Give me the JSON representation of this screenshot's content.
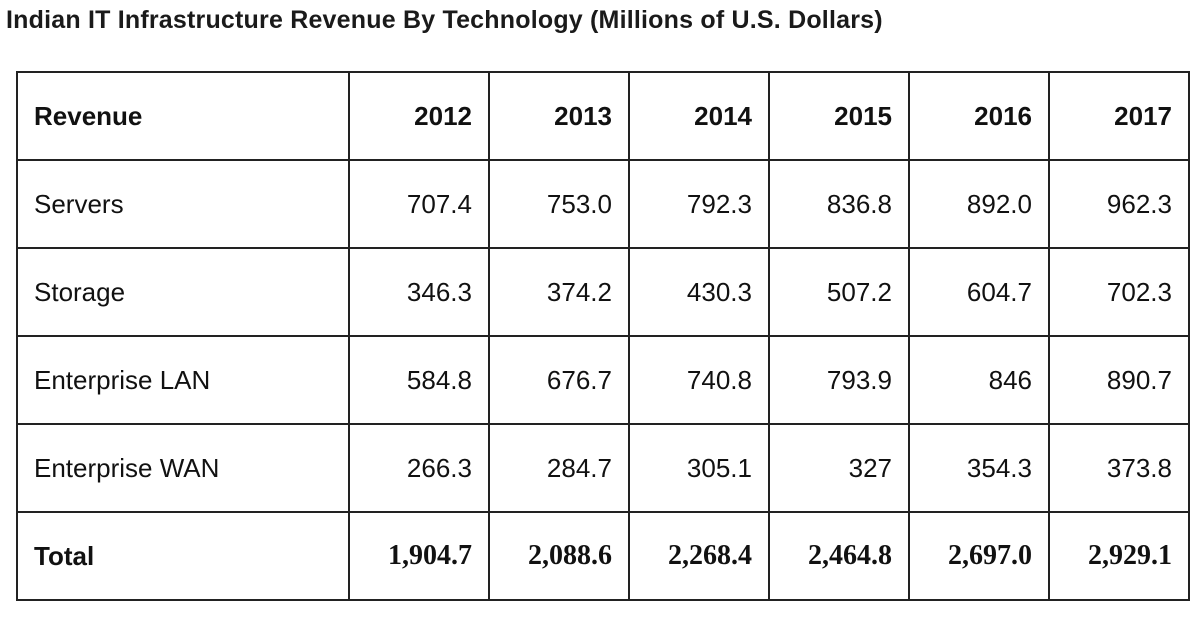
{
  "title": "Indian IT Infrastructure Revenue By Technology (Millions of U.S. Dollars)",
  "table": {
    "header_label": "Revenue",
    "years": [
      "2012",
      "2013",
      "2014",
      "2015",
      "2016",
      "2017"
    ],
    "rows": [
      {
        "label": "Servers",
        "values": [
          "707.4",
          "753.0",
          "792.3",
          "836.8",
          "892.0",
          "962.3"
        ]
      },
      {
        "label": "Storage",
        "values": [
          "346.3",
          "374.2",
          "430.3",
          "507.2",
          "604.7",
          "702.3"
        ]
      },
      {
        "label": "Enterprise LAN",
        "values": [
          "584.8",
          "676.7",
          "740.8",
          "793.9",
          "846",
          "890.7"
        ]
      },
      {
        "label": "Enterprise WAN",
        "values": [
          "266.3",
          "284.7",
          "305.1",
          "327",
          "354.3",
          "373.8"
        ]
      }
    ],
    "total": {
      "label": "Total",
      "values": [
        "1,904.7",
        "2,088.6",
        "2,268.4",
        "2,464.8",
        "2,697.0",
        "2,929.1"
      ]
    }
  },
  "chart_data": {
    "type": "table",
    "title": "Indian IT Infrastructure Revenue By Technology (Millions of U.S. Dollars)",
    "columns": [
      "Revenue",
      "2012",
      "2013",
      "2014",
      "2015",
      "2016",
      "2017"
    ],
    "rows": [
      [
        "Servers",
        707.4,
        753.0,
        792.3,
        836.8,
        892.0,
        962.3
      ],
      [
        "Storage",
        346.3,
        374.2,
        430.3,
        507.2,
        604.7,
        702.3
      ],
      [
        "Enterprise LAN",
        584.8,
        676.7,
        740.8,
        793.9,
        846,
        890.7
      ],
      [
        "Enterprise WAN",
        266.3,
        284.7,
        305.1,
        327,
        354.3,
        373.8
      ],
      [
        "Total",
        1904.7,
        2088.6,
        2268.4,
        2464.8,
        2697.0,
        2929.1
      ]
    ]
  }
}
